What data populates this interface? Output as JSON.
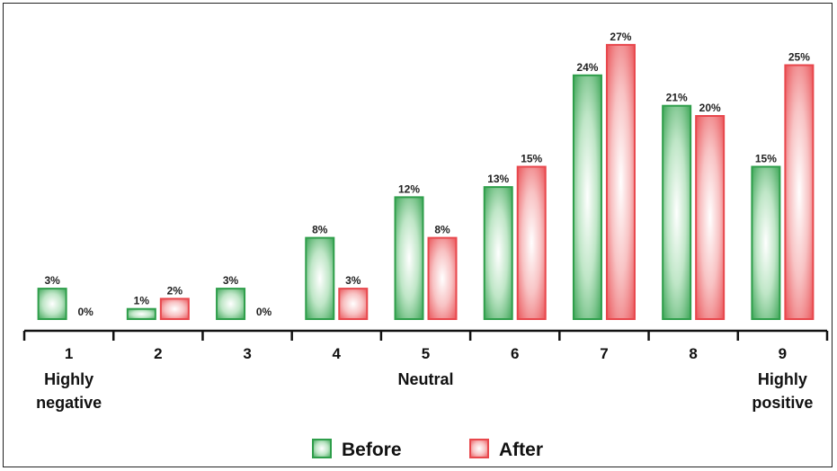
{
  "chart_data": {
    "type": "bar",
    "categories": [
      "1",
      "2",
      "3",
      "4",
      "5",
      "6",
      "7",
      "8",
      "9"
    ],
    "series": [
      {
        "name": "Before",
        "values": [
          3,
          1,
          3,
          8,
          12,
          13,
          24,
          21,
          15
        ],
        "labels": [
          "3%",
          "1%",
          "3%",
          "8%",
          "12%",
          "13%",
          "24%",
          "21%",
          "15%"
        ]
      },
      {
        "name": "After",
        "values": [
          0,
          2,
          0,
          3,
          8,
          15,
          27,
          20,
          25
        ],
        "labels": [
          "0%",
          "2%",
          "0%",
          "3%",
          "8%",
          "15%",
          "27%",
          "20%",
          "25%"
        ]
      }
    ],
    "category_annotations": [
      {
        "category": "1",
        "lines": [
          "Highly",
          "negative"
        ]
      },
      {
        "category": "5",
        "lines": [
          "Neutral"
        ]
      },
      {
        "category": "9",
        "lines": [
          "Highly",
          "positive"
        ]
      }
    ],
    "title": "",
    "xlabel": "",
    "ylabel": "",
    "ylim": [
      0,
      28
    ],
    "grid": false,
    "legend_position": "bottom-center",
    "colors": {
      "Before": "#2e9e4a",
      "After": "#e8474c"
    }
  }
}
